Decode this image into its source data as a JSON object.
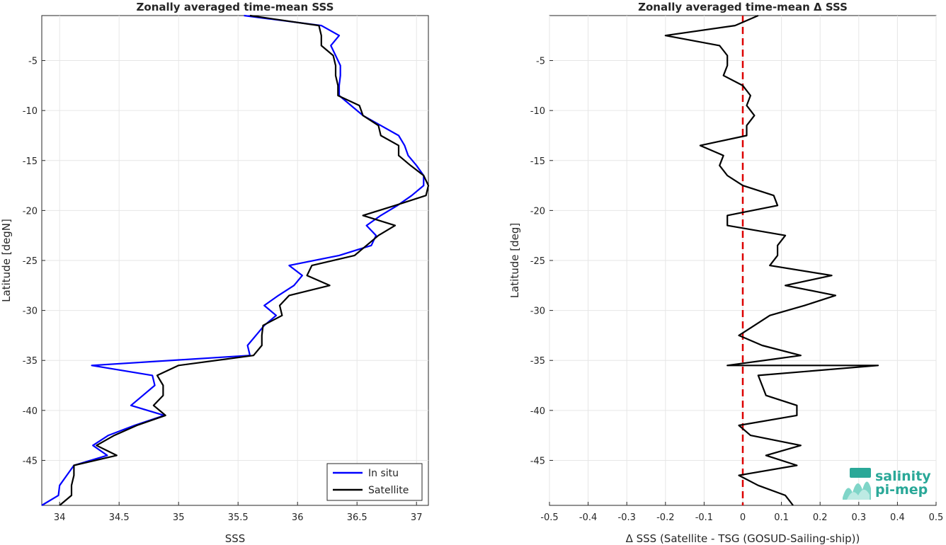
{
  "chart_data": [
    {
      "type": "line",
      "title": "Zonally averaged time-mean SSS",
      "xlabel": "SSS",
      "ylabel": "Latitude [degN]",
      "xlim": [
        33.85,
        37.1
      ],
      "ylim": [
        -49.5,
        -0.5
      ],
      "xticks": [
        "34",
        "34.5",
        "35",
        "35.5",
        "36",
        "36.5",
        "37"
      ],
      "yticks": [
        "-5",
        "-10",
        "-15",
        "-20",
        "-25",
        "-30",
        "-35",
        "-40",
        "-45"
      ],
      "grid": true,
      "legend_position": "bottom-right",
      "series": [
        {
          "name": "In situ",
          "color": "#0000ff",
          "points": [
            [
              35.55,
              -0.5
            ],
            [
              36.2,
              -1.5
            ],
            [
              36.35,
              -2.5
            ],
            [
              36.28,
              -3.5
            ],
            [
              36.32,
              -4.5
            ],
            [
              36.36,
              -5.5
            ],
            [
              36.36,
              -6.5
            ],
            [
              36.35,
              -7.5
            ],
            [
              36.35,
              -8.5
            ],
            [
              36.45,
              -9.5
            ],
            [
              36.55,
              -10.5
            ],
            [
              36.7,
              -11.5
            ],
            [
              36.85,
              -12.5
            ],
            [
              36.9,
              -13.5
            ],
            [
              36.93,
              -14.5
            ],
            [
              37.0,
              -15.5
            ],
            [
              37.06,
              -16.5
            ],
            [
              37.06,
              -17.5
            ],
            [
              36.96,
              -18.5
            ],
            [
              36.84,
              -19.5
            ],
            [
              36.7,
              -20.5
            ],
            [
              36.58,
              -21.5
            ],
            [
              36.66,
              -22.5
            ],
            [
              36.62,
              -23.5
            ],
            [
              36.35,
              -24.5
            ],
            [
              35.93,
              -25.5
            ],
            [
              36.04,
              -26.5
            ],
            [
              35.97,
              -27.5
            ],
            [
              35.84,
              -28.5
            ],
            [
              35.72,
              -29.5
            ],
            [
              35.82,
              -30.5
            ],
            [
              35.72,
              -31.5
            ],
            [
              35.65,
              -32.5
            ],
            [
              35.58,
              -33.5
            ],
            [
              35.6,
              -34.5
            ],
            [
              34.27,
              -35.5
            ],
            [
              34.78,
              -36.5
            ],
            [
              34.8,
              -37.5
            ],
            [
              34.7,
              -38.5
            ],
            [
              34.6,
              -39.5
            ],
            [
              34.88,
              -40.5
            ],
            [
              34.63,
              -41.5
            ],
            [
              34.41,
              -42.5
            ],
            [
              34.28,
              -43.5
            ],
            [
              34.4,
              -44.5
            ],
            [
              34.12,
              -45.5
            ],
            [
              34.06,
              -46.5
            ],
            [
              34.0,
              -47.5
            ],
            [
              33.99,
              -48.5
            ],
            [
              33.85,
              -49.5
            ]
          ]
        },
        {
          "name": "Satellite",
          "color": "#000000",
          "points": [
            [
              35.6,
              -0.5
            ],
            [
              36.18,
              -1.5
            ],
            [
              36.2,
              -2.5
            ],
            [
              36.2,
              -3.5
            ],
            [
              36.3,
              -4.5
            ],
            [
              36.32,
              -5.5
            ],
            [
              36.32,
              -6.5
            ],
            [
              36.34,
              -7.5
            ],
            [
              36.34,
              -8.5
            ],
            [
              36.52,
              -9.5
            ],
            [
              36.55,
              -10.5
            ],
            [
              36.68,
              -11.5
            ],
            [
              36.7,
              -12.5
            ],
            [
              36.85,
              -13.5
            ],
            [
              36.85,
              -14.5
            ],
            [
              36.95,
              -15.5
            ],
            [
              37.06,
              -16.5
            ],
            [
              37.1,
              -17.5
            ],
            [
              37.08,
              -18.5
            ],
            [
              36.82,
              -19.5
            ],
            [
              36.55,
              -20.5
            ],
            [
              36.82,
              -21.5
            ],
            [
              36.68,
              -22.5
            ],
            [
              36.58,
              -23.5
            ],
            [
              36.48,
              -24.5
            ],
            [
              36.12,
              -25.5
            ],
            [
              36.08,
              -26.5
            ],
            [
              36.27,
              -27.5
            ],
            [
              35.93,
              -28.5
            ],
            [
              35.85,
              -29.5
            ],
            [
              35.87,
              -30.5
            ],
            [
              35.71,
              -31.5
            ],
            [
              35.7,
              -32.5
            ],
            [
              35.7,
              -33.5
            ],
            [
              35.63,
              -34.5
            ],
            [
              35.0,
              -35.5
            ],
            [
              34.82,
              -36.5
            ],
            [
              34.87,
              -37.5
            ],
            [
              34.87,
              -38.5
            ],
            [
              34.79,
              -39.5
            ],
            [
              34.89,
              -40.5
            ],
            [
              34.65,
              -41.5
            ],
            [
              34.46,
              -42.5
            ],
            [
              34.31,
              -43.5
            ],
            [
              34.48,
              -44.5
            ],
            [
              34.12,
              -45.5
            ],
            [
              34.12,
              -46.5
            ],
            [
              34.1,
              -47.5
            ],
            [
              34.1,
              -48.5
            ],
            [
              34.0,
              -49.5
            ]
          ]
        }
      ]
    },
    {
      "type": "line",
      "title": "Zonally averaged time-mean Δ SSS",
      "xlabel": "Δ SSS (Satellite - TSG (GOSUD-Sailing-ship))",
      "ylabel": "Latitude [deg]",
      "xlim": [
        -0.5,
        0.5
      ],
      "ylim": [
        -49.5,
        -0.5
      ],
      "xticks": [
        "-0.5",
        "-0.4",
        "-0.3",
        "-0.2",
        "-0.1",
        "0",
        "0.1",
        "0.2",
        "0.3",
        "0.4",
        "0.5"
      ],
      "yticks": [
        "-5",
        "-10",
        "-15",
        "-20",
        "-25",
        "-30",
        "-35",
        "-40",
        "-45"
      ],
      "grid": true,
      "reference_line": {
        "x": 0,
        "color": "#dd0000",
        "style": "dashed"
      },
      "series": [
        {
          "color": "#000000",
          "points": [
            [
              0.04,
              -0.5
            ],
            [
              -0.02,
              -1.5
            ],
            [
              -0.2,
              -2.5
            ],
            [
              -0.06,
              -3.5
            ],
            [
              -0.04,
              -4.5
            ],
            [
              -0.04,
              -5.5
            ],
            [
              -0.05,
              -6.5
            ],
            [
              0.0,
              -7.5
            ],
            [
              0.02,
              -8.5
            ],
            [
              0.01,
              -9.5
            ],
            [
              0.03,
              -10.5
            ],
            [
              0.01,
              -11.5
            ],
            [
              0.01,
              -12.5
            ],
            [
              -0.11,
              -13.5
            ],
            [
              -0.05,
              -14.5
            ],
            [
              -0.06,
              -15.5
            ],
            [
              -0.04,
              -16.5
            ],
            [
              0.0,
              -17.5
            ],
            [
              0.08,
              -18.5
            ],
            [
              0.09,
              -19.5
            ],
            [
              -0.04,
              -20.5
            ],
            [
              -0.04,
              -21.5
            ],
            [
              0.11,
              -22.5
            ],
            [
              0.09,
              -23.5
            ],
            [
              0.09,
              -24.5
            ],
            [
              0.07,
              -25.5
            ],
            [
              0.23,
              -26.5
            ],
            [
              0.11,
              -27.5
            ],
            [
              0.24,
              -28.5
            ],
            [
              0.16,
              -29.5
            ],
            [
              0.07,
              -30.5
            ],
            [
              0.03,
              -31.5
            ],
            [
              -0.01,
              -32.5
            ],
            [
              0.05,
              -33.5
            ],
            [
              0.15,
              -34.5
            ],
            [
              -0.04,
              -35.5
            ],
            [
              0.35,
              -35.5
            ],
            [
              0.04,
              -36.5
            ],
            [
              0.05,
              -37.5
            ],
            [
              0.06,
              -38.5
            ],
            [
              0.14,
              -39.5
            ],
            [
              0.14,
              -40.5
            ],
            [
              -0.01,
              -41.5
            ],
            [
              0.02,
              -42.5
            ],
            [
              0.15,
              -43.5
            ],
            [
              0.06,
              -44.5
            ],
            [
              0.14,
              -45.5
            ],
            [
              -0.01,
              -46.5
            ],
            [
              0.04,
              -47.5
            ],
            [
              0.11,
              -48.5
            ],
            [
              0.13,
              -49.5
            ]
          ]
        }
      ]
    }
  ],
  "logo": {
    "line1": "salinity",
    "line2": "pi-mep"
  },
  "colors": {
    "grid": "#e6e6e6",
    "axis": "#262626"
  }
}
